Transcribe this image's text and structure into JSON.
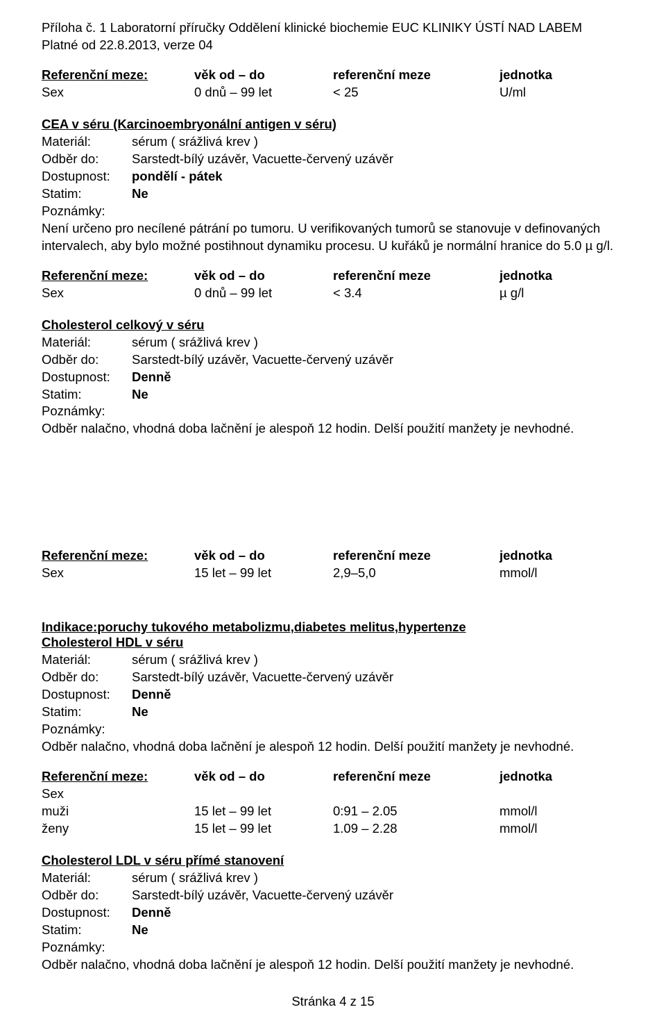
{
  "header": {
    "line1": "Příloha č. 1 Laboratorní příručky Oddělení klinické biochemie EUC KLINIKY ÚSTÍ NAD LABEM",
    "line2": "Platné od 22.8.2013, verze 04"
  },
  "table1": {
    "h_col1": "Referenční meze:",
    "h_col2": "věk od – do",
    "h_col3": "referenční meze",
    "h_col4": "jednotka",
    "r1_col1": "Sex",
    "r1_col2": "0 dnů – 99 let",
    "r1_col3": "< 25",
    "r1_col4": "U/ml"
  },
  "cea": {
    "title": "CEA v  séru (Karcinoembryonální antigen v  séru)",
    "material_label": "Materiál:",
    "material_value": "sérum ( srážlivá krev )",
    "odber_label": "Odběr do:",
    "odber_value": "Sarstedt-bílý uzávěr, Vacuette-červený uzávěr",
    "dostupnost_label": "Dostupnost:",
    "dostupnost_value": "pondělí - pátek",
    "statim_label": "Statim:",
    "statim_value": "Ne",
    "poznamky_label": "Poznámky:",
    "poznamky_text": "Není určeno pro necílené pátrání po tumoru. U verifikovaných tumorů se stanovuje v definovaných intervalech, aby bylo možné postihnout dynamiku procesu. U kuřáků je normální hranice do 5.0 µ g/l."
  },
  "table2": {
    "h_col1": "Referenční meze:",
    "h_col2": "věk od – do",
    "h_col3": "referenční meze",
    "h_col4": "jednotka",
    "r1_col1": "Sex",
    "r1_col2": "0 dnů – 99 let",
    "r1_col3": "< 3.4",
    "r1_col4": "µ g/l"
  },
  "chol_total": {
    "title": "Cholesterol celkový v  séru",
    "material_label": "Materiál:",
    "material_value": "sérum ( srážlivá krev )",
    "odber_label": "Odběr do:",
    "odber_value": "Sarstedt-bílý uzávěr, Vacuette-červený uzávěr",
    "dostupnost_label": "Dostupnost:",
    "dostupnost_value": "Denně",
    "statim_label": "Statim:",
    "statim_value": "Ne",
    "poznamky_label": "Poznámky:",
    "poznamky_text": "Odběr nalačno, vhodná doba lačnění je alespoň 12 hodin. Delší použití manžety je nevhodné."
  },
  "table3": {
    "h_col1": "Referenční meze:",
    "h_col2": "věk od – do",
    "h_col3": "referenční meze",
    "h_col4": "jednotka",
    "r1_col1": "Sex",
    "r1_col2": "15 let – 99 let",
    "r1_col3": "2,9–5,0",
    "r1_col4": "mmol/l"
  },
  "indication": {
    "label": "Indikace:",
    "text": "poruchy tukového metabolizmu,diabetes melitus,hypertenze"
  },
  "chol_hdl": {
    "title": "Cholesterol HDL v  séru",
    "material_label": "Materiál:",
    "material_value": "sérum ( srážlivá krev )",
    "odber_label": "Odběr do:",
    "odber_value": "Sarstedt-bílý uzávěr, Vacuette-červený uzávěr",
    "dostupnost_label": "Dostupnost:",
    "dostupnost_value": "Denně",
    "statim_label": "Statim:",
    "statim_value": "Ne",
    "poznamky_label": "Poznámky:",
    "poznamky_text": "Odběr nalačno, vhodná doba lačnění je alespoň 12 hodin. Delší použití manžety je nevhodné."
  },
  "table4": {
    "h_col1": "Referenční meze:",
    "h_col2": "věk od – do",
    "h_col3": "referenční meze",
    "h_col4": "jednotka",
    "r1_col1": "Sex",
    "r2_col1": " muži",
    "r2_col2": "15 let – 99 let",
    "r2_col3": "0:91 – 2.05",
    "r2_col4": "mmol/l",
    "r3_col1": "ženy",
    "r3_col2": "15 let – 99 let",
    "r3_col3": "1.09 – 2.28",
    "r3_col4": "mmol/l"
  },
  "chol_ldl": {
    "title": "Cholesterol LDL v  séru přímé stanovení",
    "material_label": "Materiál:",
    "material_value": "sérum ( srážlivá krev )",
    "odber_label": "Odběr do:",
    "odber_value": "Sarstedt-bílý uzávěr, Vacuette-červený uzávěr",
    "dostupnost_label": "Dostupnost:",
    "dostupnost_value": "Denně",
    "statim_label": "Statim:",
    "statim_value": "Ne",
    "poznamky_label": "Poznámky:",
    "poznamky_text": "Odběr nalačno, vhodná doba lačnění je alespoň 12 hodin. Delší použití manžety je nevhodné."
  },
  "footer": {
    "text": "Stránka 4 z 15"
  }
}
